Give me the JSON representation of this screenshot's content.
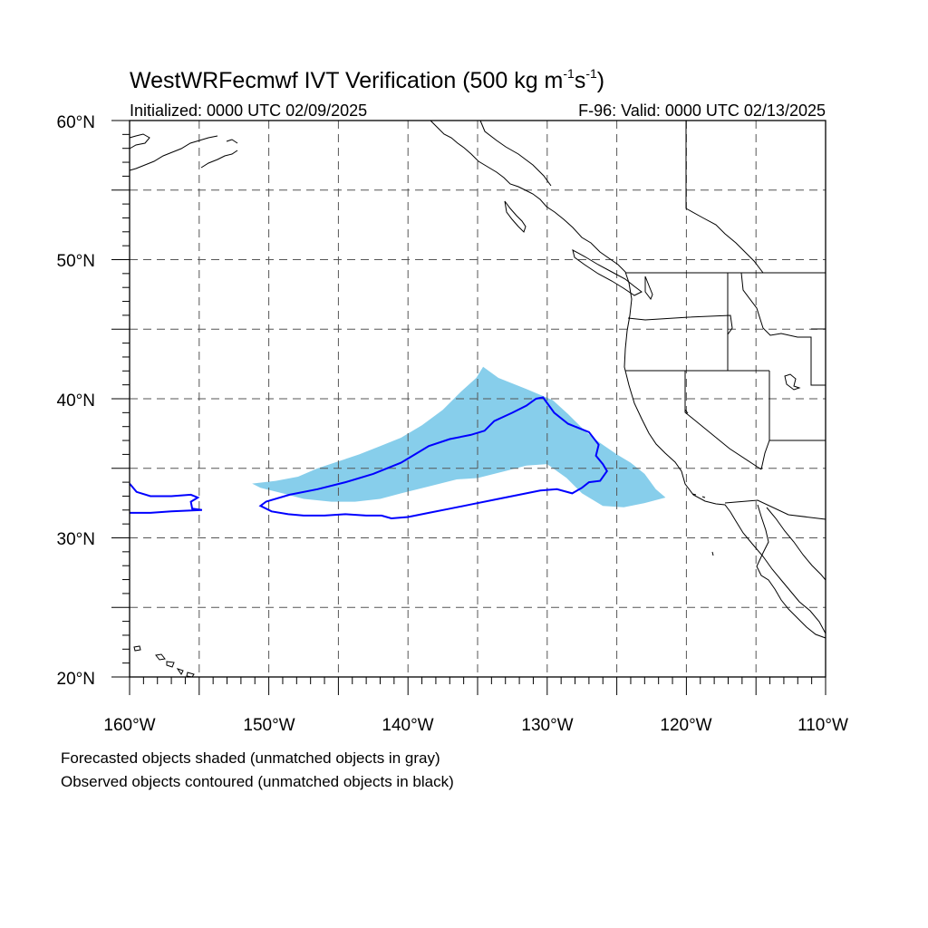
{
  "title": {
    "main": "WestWRFecmwf IVT Verification (500 kg m",
    "sup1": "-1",
    "mid": "s",
    "sup2": "-1",
    "end": ")"
  },
  "subtitle_left": "Initialized: 0000 UTC 02/09/2025",
  "subtitle_right": "F-96: Valid: 0000 UTC 02/13/2025",
  "lat_labels": [
    "60°N",
    "50°N",
    "40°N",
    "30°N",
    "20°N"
  ],
  "lon_labels": [
    "160°W",
    "150°W",
    "140°W",
    "130°W",
    "120°W",
    "110°W"
  ],
  "notes": [
    "Forecasted objects shaded (unmatched objects in gray)",
    "Observed objects contoured (unmatched objects in black)"
  ],
  "map": {
    "lon_range": [
      -160,
      -110
    ],
    "lat_range": [
      20,
      60
    ],
    "grid_lons": [
      -155,
      -150,
      -145,
      -140,
      -135,
      -130,
      -125,
      -120,
      -115
    ],
    "grid_lats": [
      25,
      30,
      35,
      40,
      45,
      50,
      55
    ],
    "grid": true
  },
  "colors": {
    "forecast_fill": "#87ceeb",
    "observed_contour": "#0000ff",
    "coastline": "#000000",
    "grid": "#555555"
  },
  "forecast_object": {
    "label": "Forecasted object (matched)",
    "points": [
      [
        -147.9,
        34.4
      ],
      [
        -146.5,
        35
      ],
      [
        -145,
        35.5
      ],
      [
        -143.5,
        36
      ],
      [
        -142,
        36.6
      ],
      [
        -140.5,
        37.2
      ],
      [
        -139,
        38.1
      ],
      [
        -137.5,
        39.2
      ],
      [
        -136.2,
        40.5
      ],
      [
        -135.1,
        41.5
      ],
      [
        -134.6,
        42.3
      ],
      [
        -133.5,
        41.5
      ],
      [
        -131.5,
        40.7
      ],
      [
        -129.6,
        39.9
      ],
      [
        -128.5,
        38.9
      ],
      [
        -127.2,
        37.6
      ],
      [
        -126.3,
        36.9
      ],
      [
        -125,
        36
      ],
      [
        -124,
        35.4
      ],
      [
        -123,
        34.6
      ],
      [
        -122.2,
        33.5
      ],
      [
        -121.5,
        32.9
      ],
      [
        -123,
        32.5
      ],
      [
        -124.5,
        32.2
      ],
      [
        -126,
        32.3
      ],
      [
        -127.5,
        33.2
      ],
      [
        -128.6,
        34.3
      ],
      [
        -130,
        35.3
      ],
      [
        -131.5,
        35.2
      ],
      [
        -133,
        34.8
      ],
      [
        -135,
        34.3
      ],
      [
        -136.5,
        34.2
      ],
      [
        -138.5,
        33.7
      ],
      [
        -140.5,
        33.2
      ],
      [
        -142,
        32.8
      ],
      [
        -143.8,
        32.6
      ],
      [
        -145.5,
        32.6
      ],
      [
        -147.5,
        32.8
      ],
      [
        -149,
        33.2
      ],
      [
        -150.6,
        33.6
      ],
      [
        -151.2,
        33.9
      ],
      [
        -149.5,
        34.1
      ]
    ]
  },
  "observed_objects": [
    {
      "label": "Observed object (matched, main)",
      "points": [
        [
          -150.2,
          32.6
        ],
        [
          -148.5,
          33.1
        ],
        [
          -146.5,
          33.5
        ],
        [
          -144.5,
          34
        ],
        [
          -142.5,
          34.6
        ],
        [
          -140.5,
          35.4
        ],
        [
          -139.5,
          36
        ],
        [
          -138.5,
          36.6
        ],
        [
          -137,
          37.1
        ],
        [
          -135.5,
          37.4
        ],
        [
          -134.5,
          37.7
        ],
        [
          -133.8,
          38.4
        ],
        [
          -132.5,
          39
        ],
        [
          -131.5,
          39.5
        ],
        [
          -130.8,
          40
        ],
        [
          -130.3,
          40.1
        ],
        [
          -129.5,
          39
        ],
        [
          -128.5,
          38.2
        ],
        [
          -127,
          37.6
        ],
        [
          -126.3,
          36.7
        ],
        [
          -126.5,
          35.9
        ],
        [
          -126,
          35.3
        ],
        [
          -125.7,
          34.8
        ],
        [
          -126.2,
          34.1
        ],
        [
          -127,
          34
        ],
        [
          -127.5,
          33.6
        ],
        [
          -128.2,
          33.2
        ],
        [
          -129.3,
          33.5
        ],
        [
          -130.5,
          33.4
        ],
        [
          -132,
          33.1
        ],
        [
          -133.5,
          32.8
        ],
        [
          -135.5,
          32.4
        ],
        [
          -137,
          32.1
        ],
        [
          -138.5,
          31.8
        ],
        [
          -140,
          31.5
        ],
        [
          -141.2,
          31.4
        ],
        [
          -141.9,
          31.6
        ],
        [
          -143,
          31.6
        ],
        [
          -144.5,
          31.7
        ],
        [
          -146,
          31.6
        ],
        [
          -147.5,
          31.6
        ],
        [
          -148.6,
          31.7
        ],
        [
          -149.8,
          31.9
        ],
        [
          -150.6,
          32.3
        ]
      ]
    },
    {
      "label": "Observed object (west edge)",
      "points": [
        [
          -160,
          33.9
        ],
        [
          -159.5,
          33.3
        ],
        [
          -158.5,
          33
        ],
        [
          -157,
          33
        ],
        [
          -155.6,
          33.1
        ],
        [
          -155.1,
          32.9
        ],
        [
          -155.6,
          32.6
        ],
        [
          -155.5,
          32.1
        ],
        [
          -154.8,
          32
        ],
        [
          -157,
          31.9
        ],
        [
          -158.5,
          31.8
        ],
        [
          -160,
          31.8
        ]
      ]
    }
  ]
}
